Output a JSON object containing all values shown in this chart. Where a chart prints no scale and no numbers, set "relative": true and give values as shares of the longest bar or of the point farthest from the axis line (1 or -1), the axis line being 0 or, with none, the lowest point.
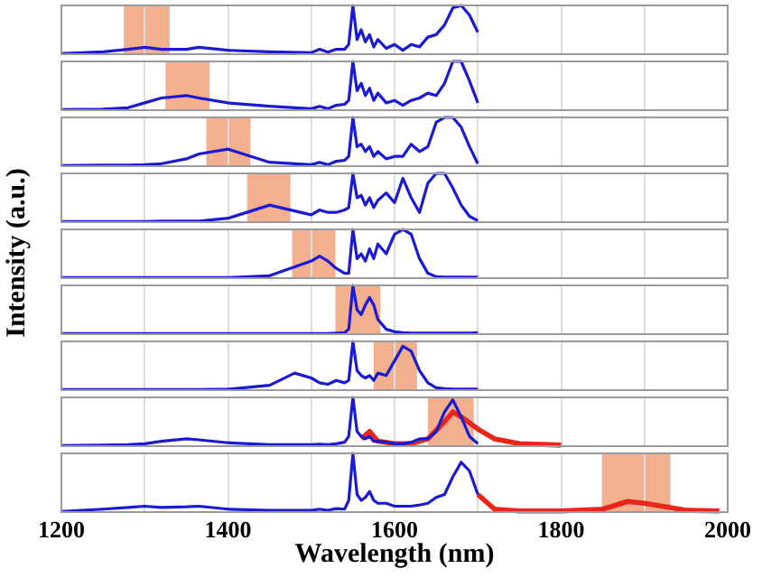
{
  "chart_data": [
    {
      "type": "line",
      "relative": true,
      "x": [
        1200,
        1250,
        1280,
        1300,
        1320,
        1350,
        1365,
        1400,
        1450,
        1500,
        1510,
        1520,
        1530,
        1540,
        1545,
        1550,
        1555,
        1560,
        1565,
        1570,
        1575,
        1580,
        1590,
        1600,
        1610,
        1620,
        1630,
        1640,
        1650,
        1660,
        1670,
        1680,
        1690,
        1700
      ],
      "series": [
        {
          "color": "#1a1ad6",
          "values": [
            0.01,
            0.05,
            0.1,
            0.14,
            0.1,
            0.1,
            0.14,
            0.08,
            0.05,
            0.03,
            0.1,
            0.04,
            0.1,
            0.1,
            0.2,
            1,
            0.3,
            0.5,
            0.25,
            0.4,
            0.15,
            0.3,
            0.12,
            0.2,
            0.08,
            0.2,
            0.15,
            0.35,
            0.4,
            0.6,
            0.95,
            1,
            0.8,
            0.45
          ]
        }
      ],
      "bands": [
        {
          "axis": "x",
          "from": 1275,
          "to": 1330,
          "color": "#f0a27a"
        }
      ],
      "xlim": [
        1200,
        2000
      ],
      "xticks": [
        1200,
        {
          "value": 1300,
          "label": null
        },
        1400,
        {
          "value": 1500,
          "label": null
        },
        1600,
        {
          "value": 1700,
          "label": null
        },
        1800,
        {
          "value": 1900,
          "label": null
        },
        2000
      ],
      "grid": "x",
      "tick_labels": false
    },
    {
      "type": "line",
      "relative": true,
      "x": [
        1200,
        1250,
        1280,
        1300,
        1320,
        1350,
        1365,
        1400,
        1450,
        1500,
        1510,
        1520,
        1530,
        1540,
        1545,
        1550,
        1555,
        1560,
        1565,
        1570,
        1575,
        1580,
        1590,
        1600,
        1610,
        1620,
        1630,
        1640,
        1650,
        1660,
        1670,
        1680,
        1690,
        1700
      ],
      "series": [
        {
          "color": "#1a1ad6",
          "values": [
            0.01,
            0.02,
            0.05,
            0.15,
            0.25,
            0.3,
            0.25,
            0.15,
            0.08,
            0.03,
            0.08,
            0.03,
            0.1,
            0.12,
            0.2,
            1,
            0.4,
            0.55,
            0.3,
            0.45,
            0.2,
            0.35,
            0.15,
            0.2,
            0.1,
            0.2,
            0.25,
            0.35,
            0.3,
            0.55,
            1,
            1,
            0.6,
            0.15
          ]
        }
      ],
      "bands": [
        {
          "axis": "x",
          "from": 1325,
          "to": 1378,
          "color": "#f0a27a"
        }
      ],
      "xlim": [
        1200,
        2000
      ],
      "xticks": [
        1200,
        {
          "value": 1300,
          "label": null
        },
        1400,
        {
          "value": 1500,
          "label": null
        },
        1600,
        {
          "value": 1700,
          "label": null
        },
        1800,
        {
          "value": 1900,
          "label": null
        },
        2000
      ],
      "grid": "x",
      "tick_labels": false
    },
    {
      "type": "line",
      "relative": true,
      "x": [
        1200,
        1250,
        1280,
        1300,
        1320,
        1350,
        1365,
        1400,
        1450,
        1500,
        1510,
        1520,
        1530,
        1540,
        1545,
        1550,
        1555,
        1560,
        1565,
        1570,
        1575,
        1580,
        1590,
        1600,
        1610,
        1620,
        1630,
        1640,
        1650,
        1660,
        1670,
        1680,
        1690,
        1700
      ],
      "series": [
        {
          "color": "#1a1ad6",
          "values": [
            0.01,
            0.02,
            0.02,
            0.03,
            0.05,
            0.15,
            0.25,
            0.35,
            0.08,
            0.03,
            0.08,
            0.03,
            0.1,
            0.12,
            0.2,
            1,
            0.4,
            0.45,
            0.3,
            0.4,
            0.2,
            0.3,
            0.15,
            0.2,
            0.2,
            0.45,
            0.3,
            0.4,
            0.9,
            1,
            1,
            0.8,
            0.4,
            0.05
          ]
        }
      ],
      "bands": [
        {
          "axis": "x",
          "from": 1374,
          "to": 1427,
          "color": "#f0a27a"
        }
      ],
      "xlim": [
        1200,
        2000
      ],
      "xticks": [
        1200,
        {
          "value": 1300,
          "label": null
        },
        1400,
        {
          "value": 1500,
          "label": null
        },
        1600,
        {
          "value": 1700,
          "label": null
        },
        1800,
        {
          "value": 1900,
          "label": null
        },
        2000
      ],
      "grid": "x",
      "tick_labels": false
    },
    {
      "type": "line",
      "relative": true,
      "x": [
        1200,
        1250,
        1280,
        1300,
        1320,
        1350,
        1365,
        1400,
        1450,
        1500,
        1510,
        1520,
        1530,
        1540,
        1545,
        1550,
        1555,
        1560,
        1565,
        1570,
        1575,
        1580,
        1590,
        1600,
        1610,
        1620,
        1630,
        1640,
        1650,
        1660,
        1670,
        1680,
        1690,
        1700
      ],
      "series": [
        {
          "color": "#1a1ad6",
          "values": [
            0.01,
            0.01,
            0.01,
            0.01,
            0.02,
            0.02,
            0.02,
            0.08,
            0.35,
            0.15,
            0.25,
            0.2,
            0.2,
            0.25,
            0.3,
            1,
            0.5,
            0.55,
            0.35,
            0.5,
            0.3,
            0.45,
            0.6,
            0.4,
            0.9,
            0.5,
            0.2,
            0.8,
            1,
            1,
            0.7,
            0.35,
            0.12,
            0.03
          ]
        }
      ],
      "bands": [
        {
          "axis": "x",
          "from": 1423,
          "to": 1475,
          "color": "#f0a27a"
        }
      ],
      "xlim": [
        1200,
        2000
      ],
      "xticks": [
        1200,
        {
          "value": 1300,
          "label": null
        },
        1400,
        {
          "value": 1500,
          "label": null
        },
        1600,
        {
          "value": 1700,
          "label": null
        },
        1800,
        {
          "value": 1900,
          "label": null
        },
        2000
      ],
      "grid": "x",
      "tick_labels": false
    },
    {
      "type": "line",
      "relative": true,
      "ylabel": "Intensity (a.u.)",
      "x": [
        1200,
        1250,
        1280,
        1300,
        1320,
        1350,
        1365,
        1400,
        1450,
        1500,
        1510,
        1520,
        1530,
        1540,
        1545,
        1550,
        1555,
        1560,
        1565,
        1570,
        1575,
        1580,
        1590,
        1600,
        1610,
        1620,
        1630,
        1640,
        1650,
        1660,
        1670,
        1680,
        1690,
        1700
      ],
      "series": [
        {
          "color": "#1a1ad6",
          "values": [
            0.01,
            0.01,
            0.01,
            0.01,
            0.01,
            0.01,
            0.01,
            0.01,
            0.05,
            0.35,
            0.45,
            0.35,
            0.2,
            0.1,
            0.1,
            1,
            0.4,
            0.5,
            0.35,
            0.6,
            0.4,
            0.7,
            0.5,
            0.9,
            1,
            0.9,
            0.4,
            0.1,
            0.03,
            0.02,
            0.02,
            0.02,
            0.02,
            0.02
          ]
        }
      ],
      "bands": [
        {
          "axis": "x",
          "from": 1477,
          "to": 1529,
          "color": "#f0a27a"
        }
      ],
      "xlim": [
        1200,
        2000
      ],
      "xticks": [
        1200,
        {
          "value": 1300,
          "label": null
        },
        1400,
        {
          "value": 1500,
          "label": null
        },
        1600,
        {
          "value": 1700,
          "label": null
        },
        1800,
        {
          "value": 1900,
          "label": null
        },
        2000
      ],
      "grid": "x",
      "tick_labels": false
    },
    {
      "type": "line",
      "relative": true,
      "x": [
        1200,
        1250,
        1280,
        1300,
        1320,
        1350,
        1365,
        1400,
        1450,
        1500,
        1510,
        1520,
        1530,
        1540,
        1545,
        1550,
        1555,
        1560,
        1565,
        1570,
        1575,
        1580,
        1590,
        1600,
        1610,
        1620,
        1630,
        1640,
        1650,
        1660,
        1670,
        1680,
        1690,
        1700
      ],
      "series": [
        {
          "color": "#1a1ad6",
          "values": [
            0.01,
            0.01,
            0.01,
            0.01,
            0.01,
            0.01,
            0.01,
            0.01,
            0.01,
            0.01,
            0.01,
            0.01,
            0.02,
            0.03,
            0.1,
            1,
            0.5,
            0.4,
            0.6,
            0.75,
            0.6,
            0.3,
            0.1,
            0.05,
            0.03,
            0.02,
            0.02,
            0.02,
            0.02,
            0.02,
            0.02,
            0.02,
            0.02,
            0.03
          ]
        }
      ],
      "bands": [
        {
          "axis": "x",
          "from": 1529,
          "to": 1583,
          "color": "#f0a27a"
        }
      ],
      "xlim": [
        1200,
        2000
      ],
      "xticks": [
        1200,
        {
          "value": 1300,
          "label": null
        },
        1400,
        {
          "value": 1500,
          "label": null
        },
        1600,
        {
          "value": 1700,
          "label": null
        },
        1800,
        {
          "value": 1900,
          "label": null
        },
        2000
      ],
      "grid": "x",
      "tick_labels": false
    },
    {
      "type": "line",
      "relative": true,
      "x": [
        1200,
        1250,
        1280,
        1300,
        1320,
        1350,
        1365,
        1400,
        1450,
        1480,
        1500,
        1510,
        1520,
        1530,
        1540,
        1545,
        1550,
        1555,
        1560,
        1565,
        1570,
        1575,
        1580,
        1590,
        1600,
        1610,
        1620,
        1630,
        1640,
        1650,
        1660,
        1670,
        1680,
        1690,
        1700
      ],
      "series": [
        {
          "color": "#1a1ad6",
          "values": [
            0.01,
            0.01,
            0.01,
            0.01,
            0.01,
            0.01,
            0.01,
            0.02,
            0.1,
            0.35,
            0.25,
            0.15,
            0.12,
            0.2,
            0.15,
            0.2,
            1,
            0.4,
            0.3,
            0.25,
            0.3,
            0.2,
            0.35,
            0.3,
            0.6,
            0.9,
            0.8,
            0.4,
            0.15,
            0.05,
            0.03,
            0.02,
            0.02,
            0.02,
            0.02
          ]
        }
      ],
      "bands": [
        {
          "axis": "x",
          "from": 1575,
          "to": 1627,
          "color": "#f0a27a"
        }
      ],
      "xlim": [
        1200,
        2000
      ],
      "xticks": [
        1200,
        {
          "value": 1300,
          "label": null
        },
        1400,
        {
          "value": 1500,
          "label": null
        },
        1600,
        {
          "value": 1700,
          "label": null
        },
        1800,
        {
          "value": 1900,
          "label": null
        },
        2000
      ],
      "grid": "x",
      "tick_labels": false
    },
    {
      "type": "line",
      "relative": true,
      "x": [
        1200,
        1250,
        1280,
        1300,
        1320,
        1350,
        1365,
        1400,
        1450,
        1500,
        1510,
        1520,
        1530,
        1540,
        1545,
        1550,
        1555,
        1560,
        1565,
        1570,
        1575,
        1580,
        1590,
        1600,
        1610,
        1620,
        1630,
        1640,
        1650,
        1660,
        1670,
        1680,
        1690,
        1700
      ],
      "series": [
        {
          "color": "#1a1ad6",
          "values": [
            0.01,
            0.02,
            0.03,
            0.05,
            0.1,
            0.15,
            0.13,
            0.07,
            0.03,
            0.03,
            0.04,
            0.03,
            0.05,
            0.08,
            0.2,
            1,
            0.3,
            0.2,
            0.15,
            0.2,
            0.1,
            0.1,
            0.08,
            0.05,
            0.05,
            0.08,
            0.15,
            0.15,
            0.3,
            0.7,
            0.95,
            0.6,
            0.2,
            0.05
          ]
        },
        {
          "color": "#e8261a",
          "x": [
            1560,
            1570,
            1580,
            1600,
            1620,
            1640,
            1660,
            1670,
            1680,
            1700,
            1720,
            1750,
            1800
          ],
          "values": [
            0.15,
            0.3,
            0.1,
            0.05,
            0.05,
            0.15,
            0.5,
            0.7,
            0.6,
            0.35,
            0.15,
            0.05,
            0.02
          ]
        }
      ],
      "bands": [
        {
          "axis": "x",
          "from": 1640,
          "to": 1695,
          "color": "#f0a27a"
        }
      ],
      "xlim": [
        1200,
        2000
      ],
      "xticks": [
        1200,
        {
          "value": 1300,
          "label": null
        },
        1400,
        {
          "value": 1500,
          "label": null
        },
        1600,
        {
          "value": 1700,
          "label": null
        },
        1800,
        {
          "value": 1900,
          "label": null
        },
        2000
      ],
      "grid": "x",
      "tick_labels": false
    },
    {
      "type": "line",
      "relative": true,
      "xlabel": "Wavelength (nm)",
      "x": [
        1200,
        1250,
        1280,
        1300,
        1320,
        1350,
        1365,
        1400,
        1450,
        1500,
        1510,
        1520,
        1530,
        1540,
        1545,
        1550,
        1555,
        1560,
        1565,
        1570,
        1575,
        1580,
        1590,
        1600,
        1610,
        1620,
        1630,
        1640,
        1650,
        1660,
        1670,
        1680,
        1690,
        1700
      ],
      "series": [
        {
          "color": "#1a1ad6",
          "values": [
            0.01,
            0.05,
            0.08,
            0.1,
            0.08,
            0.09,
            0.1,
            0.05,
            0.03,
            0.03,
            0.05,
            0.03,
            0.06,
            0.05,
            0.2,
            1,
            0.3,
            0.2,
            0.25,
            0.35,
            0.2,
            0.15,
            0.15,
            0.1,
            0.1,
            0.1,
            0.12,
            0.15,
            0.25,
            0.3,
            0.6,
            0.85,
            0.7,
            0.3
          ]
        },
        {
          "color": "#e8261a",
          "x": [
            1700,
            1720,
            1750,
            1800,
            1850,
            1880,
            1900,
            1950,
            1990
          ],
          "values": [
            0.3,
            0.05,
            0.02,
            0.02,
            0.05,
            0.18,
            0.15,
            0.03,
            0.02
          ]
        }
      ],
      "bands": [
        {
          "axis": "x",
          "from": 1849,
          "to": 1931,
          "color": "#f0a27a"
        }
      ],
      "xlim": [
        1200,
        2000
      ],
      "xticks": [
        1200,
        {
          "value": 1300,
          "label": null
        },
        1400,
        {
          "value": 1500,
          "label": null
        },
        1600,
        {
          "value": 1700,
          "label": null
        },
        1800,
        {
          "value": 1900,
          "label": null
        },
        2000
      ],
      "grid": "x"
    }
  ]
}
